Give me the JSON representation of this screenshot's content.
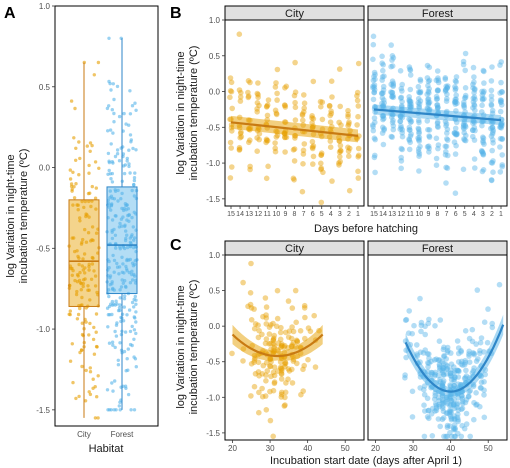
{
  "colors": {
    "city": "#E69F00",
    "forest": "#56B4E9",
    "city_dark": "#C87A12",
    "forest_dark": "#2E86C8"
  },
  "panels": {
    "A": "A",
    "B": "B",
    "C": "C"
  },
  "ylabel": [
    "log Variation in night-time",
    "incubation temperature (ºC)"
  ],
  "chart_data": [
    {
      "panel": "A",
      "type": "box",
      "xlabel": "Habitat",
      "ylim": [
        -1.6,
        1.0
      ],
      "yticks": [
        "1.0",
        "0.5",
        "0.0",
        "-0.5",
        "-1.0",
        "-1.5"
      ],
      "categories": [
        "City",
        "Forest"
      ],
      "boxes": [
        {
          "name": "City",
          "whisker_low": -1.55,
          "q1": -0.86,
          "median": -0.58,
          "q3": -0.2,
          "whisker_high": 0.65
        },
        {
          "name": "Forest",
          "whisker_low": -1.5,
          "q1": -0.78,
          "median": -0.48,
          "q3": -0.12,
          "whisker_high": 0.8
        }
      ]
    },
    {
      "panel": "B",
      "type": "scatter",
      "xlabel": "Days before hatching",
      "ylim": [
        -1.6,
        1.0
      ],
      "yticks": [
        "1.0",
        "0.5",
        "0.0",
        "-0.5",
        "-1.0",
        "-1.5"
      ],
      "xticks": [
        "15",
        "14",
        "13",
        "12",
        "11",
        "10",
        "9",
        "8",
        "7",
        "6",
        "5",
        "4",
        "3",
        "2",
        "1"
      ],
      "facets": [
        {
          "name": "City",
          "fit_start": -0.43,
          "fit_end": -0.62,
          "band": 0.09
        },
        {
          "name": "Forest",
          "fit_start": -0.25,
          "fit_end": -0.4,
          "band": 0.07
        }
      ]
    },
    {
      "panel": "C",
      "type": "scatter",
      "xlabel": "Incubation start date (days after April 1)",
      "ylim": [
        -1.6,
        1.0
      ],
      "yticks": [
        "1.0",
        "0.5",
        "0.0",
        "-0.5",
        "-1.0",
        "-1.5"
      ],
      "xlim": [
        18,
        55
      ],
      "xticks": [
        "20",
        "30",
        "40",
        "50"
      ],
      "facets": [
        {
          "name": "City",
          "x_range": [
            20,
            44
          ],
          "vertex_x": 32,
          "vertex_y": -0.42,
          "curv": 0.0021,
          "band": 0.09
        },
        {
          "name": "Forest",
          "x_range": [
            28,
            54
          ],
          "vertex_x": 40,
          "vertex_y": -0.92,
          "curv": 0.0048,
          "band": 0.09
        }
      ]
    }
  ]
}
